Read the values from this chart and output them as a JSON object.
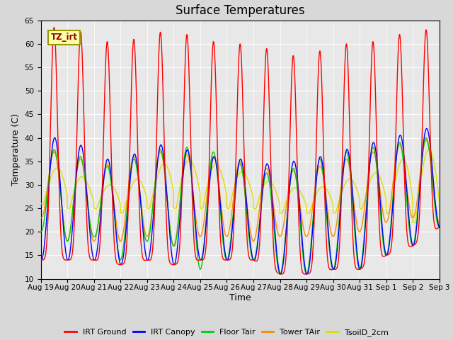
{
  "title": "Surface Temperatures",
  "xlabel": "Time",
  "ylabel": "Temperature (C)",
  "ylim": [
    10,
    65
  ],
  "yticks": [
    10,
    15,
    20,
    25,
    30,
    35,
    40,
    45,
    50,
    55,
    60,
    65
  ],
  "xtick_labels": [
    "Aug 19",
    "Aug 20",
    "Aug 21",
    "Aug 22",
    "Aug 23",
    "Aug 24",
    "Aug 25",
    "Aug 26",
    "Aug 27",
    "Aug 28",
    "Aug 29",
    "Aug 30",
    "Aug 31",
    "Sep 1",
    "Sep 2",
    "Sep 3"
  ],
  "num_days": 16,
  "series": {
    "IRT Ground": {
      "color": "#ff0000",
      "day_min": [
        14,
        14,
        14,
        13,
        14,
        13,
        14,
        14,
        14,
        11,
        11,
        12,
        12,
        15,
        17,
        21
      ],
      "day_max": [
        63,
        64,
        61,
        60,
        62,
        63,
        61,
        60,
        60,
        58,
        57,
        60,
        60,
        61,
        63,
        63
      ],
      "sharpness": 6,
      "phase_peak": 0.5
    },
    "IRT Canopy": {
      "color": "#0000ff",
      "day_min": [
        14,
        14,
        14,
        13,
        14,
        13,
        14,
        14,
        14,
        11,
        11,
        12,
        12,
        15,
        17,
        21
      ],
      "day_max": [
        39,
        41,
        36,
        35,
        38,
        39,
        36,
        36,
        35,
        34,
        36,
        36,
        39,
        39,
        42,
        42
      ],
      "sharpness": 2,
      "phase_peak": 0.52
    },
    "Floor Tair": {
      "color": "#00cc00",
      "day_min": [
        20,
        18,
        19,
        14,
        18,
        17,
        12,
        14,
        14,
        11,
        11,
        12,
        12,
        15,
        17,
        21
      ],
      "day_max": [
        37,
        38,
        34,
        34,
        37,
        38,
        38,
        36,
        33,
        32,
        35,
        36,
        38,
        38,
        40,
        40
      ],
      "sharpness": 2,
      "phase_peak": 0.5
    },
    "Tower TAir": {
      "color": "#ff8800",
      "day_min": [
        23,
        18,
        18,
        18,
        19,
        17,
        19,
        19,
        18,
        19,
        19,
        19,
        20,
        22,
        23,
        22
      ],
      "day_max": [
        37,
        37,
        34,
        35,
        37,
        37,
        36,
        36,
        34,
        33,
        33,
        35,
        36,
        38,
        39,
        40
      ],
      "sharpness": 2,
      "phase_peak": 0.5
    },
    "TsoilD_2cm": {
      "color": "#dddd00",
      "day_min": [
        26,
        25,
        25,
        24,
        25,
        25,
        25,
        25,
        25,
        24,
        24,
        24,
        25,
        24,
        22,
        21
      ],
      "day_max": [
        33,
        34,
        30,
        30,
        32,
        36,
        35,
        34,
        32,
        30,
        29,
        30,
        32,
        33,
        37,
        38
      ],
      "sharpness": 1,
      "phase_peak": 0.6
    }
  },
  "plot_order": [
    "TsoilD_2cm",
    "Tower TAir",
    "Floor Tair",
    "IRT Canopy",
    "IRT Ground"
  ],
  "legend_order": [
    "IRT Ground",
    "IRT Canopy",
    "Floor Tair",
    "Tower TAir",
    "TsoilD_2cm"
  ],
  "annotation_text": "TZ_irt",
  "fig_bg_color": "#d8d8d8",
  "plot_bg_color": "#e8e8e8",
  "grid_color": "#ffffff",
  "title_fontsize": 12,
  "axis_label_fontsize": 9,
  "tick_fontsize": 7.5
}
